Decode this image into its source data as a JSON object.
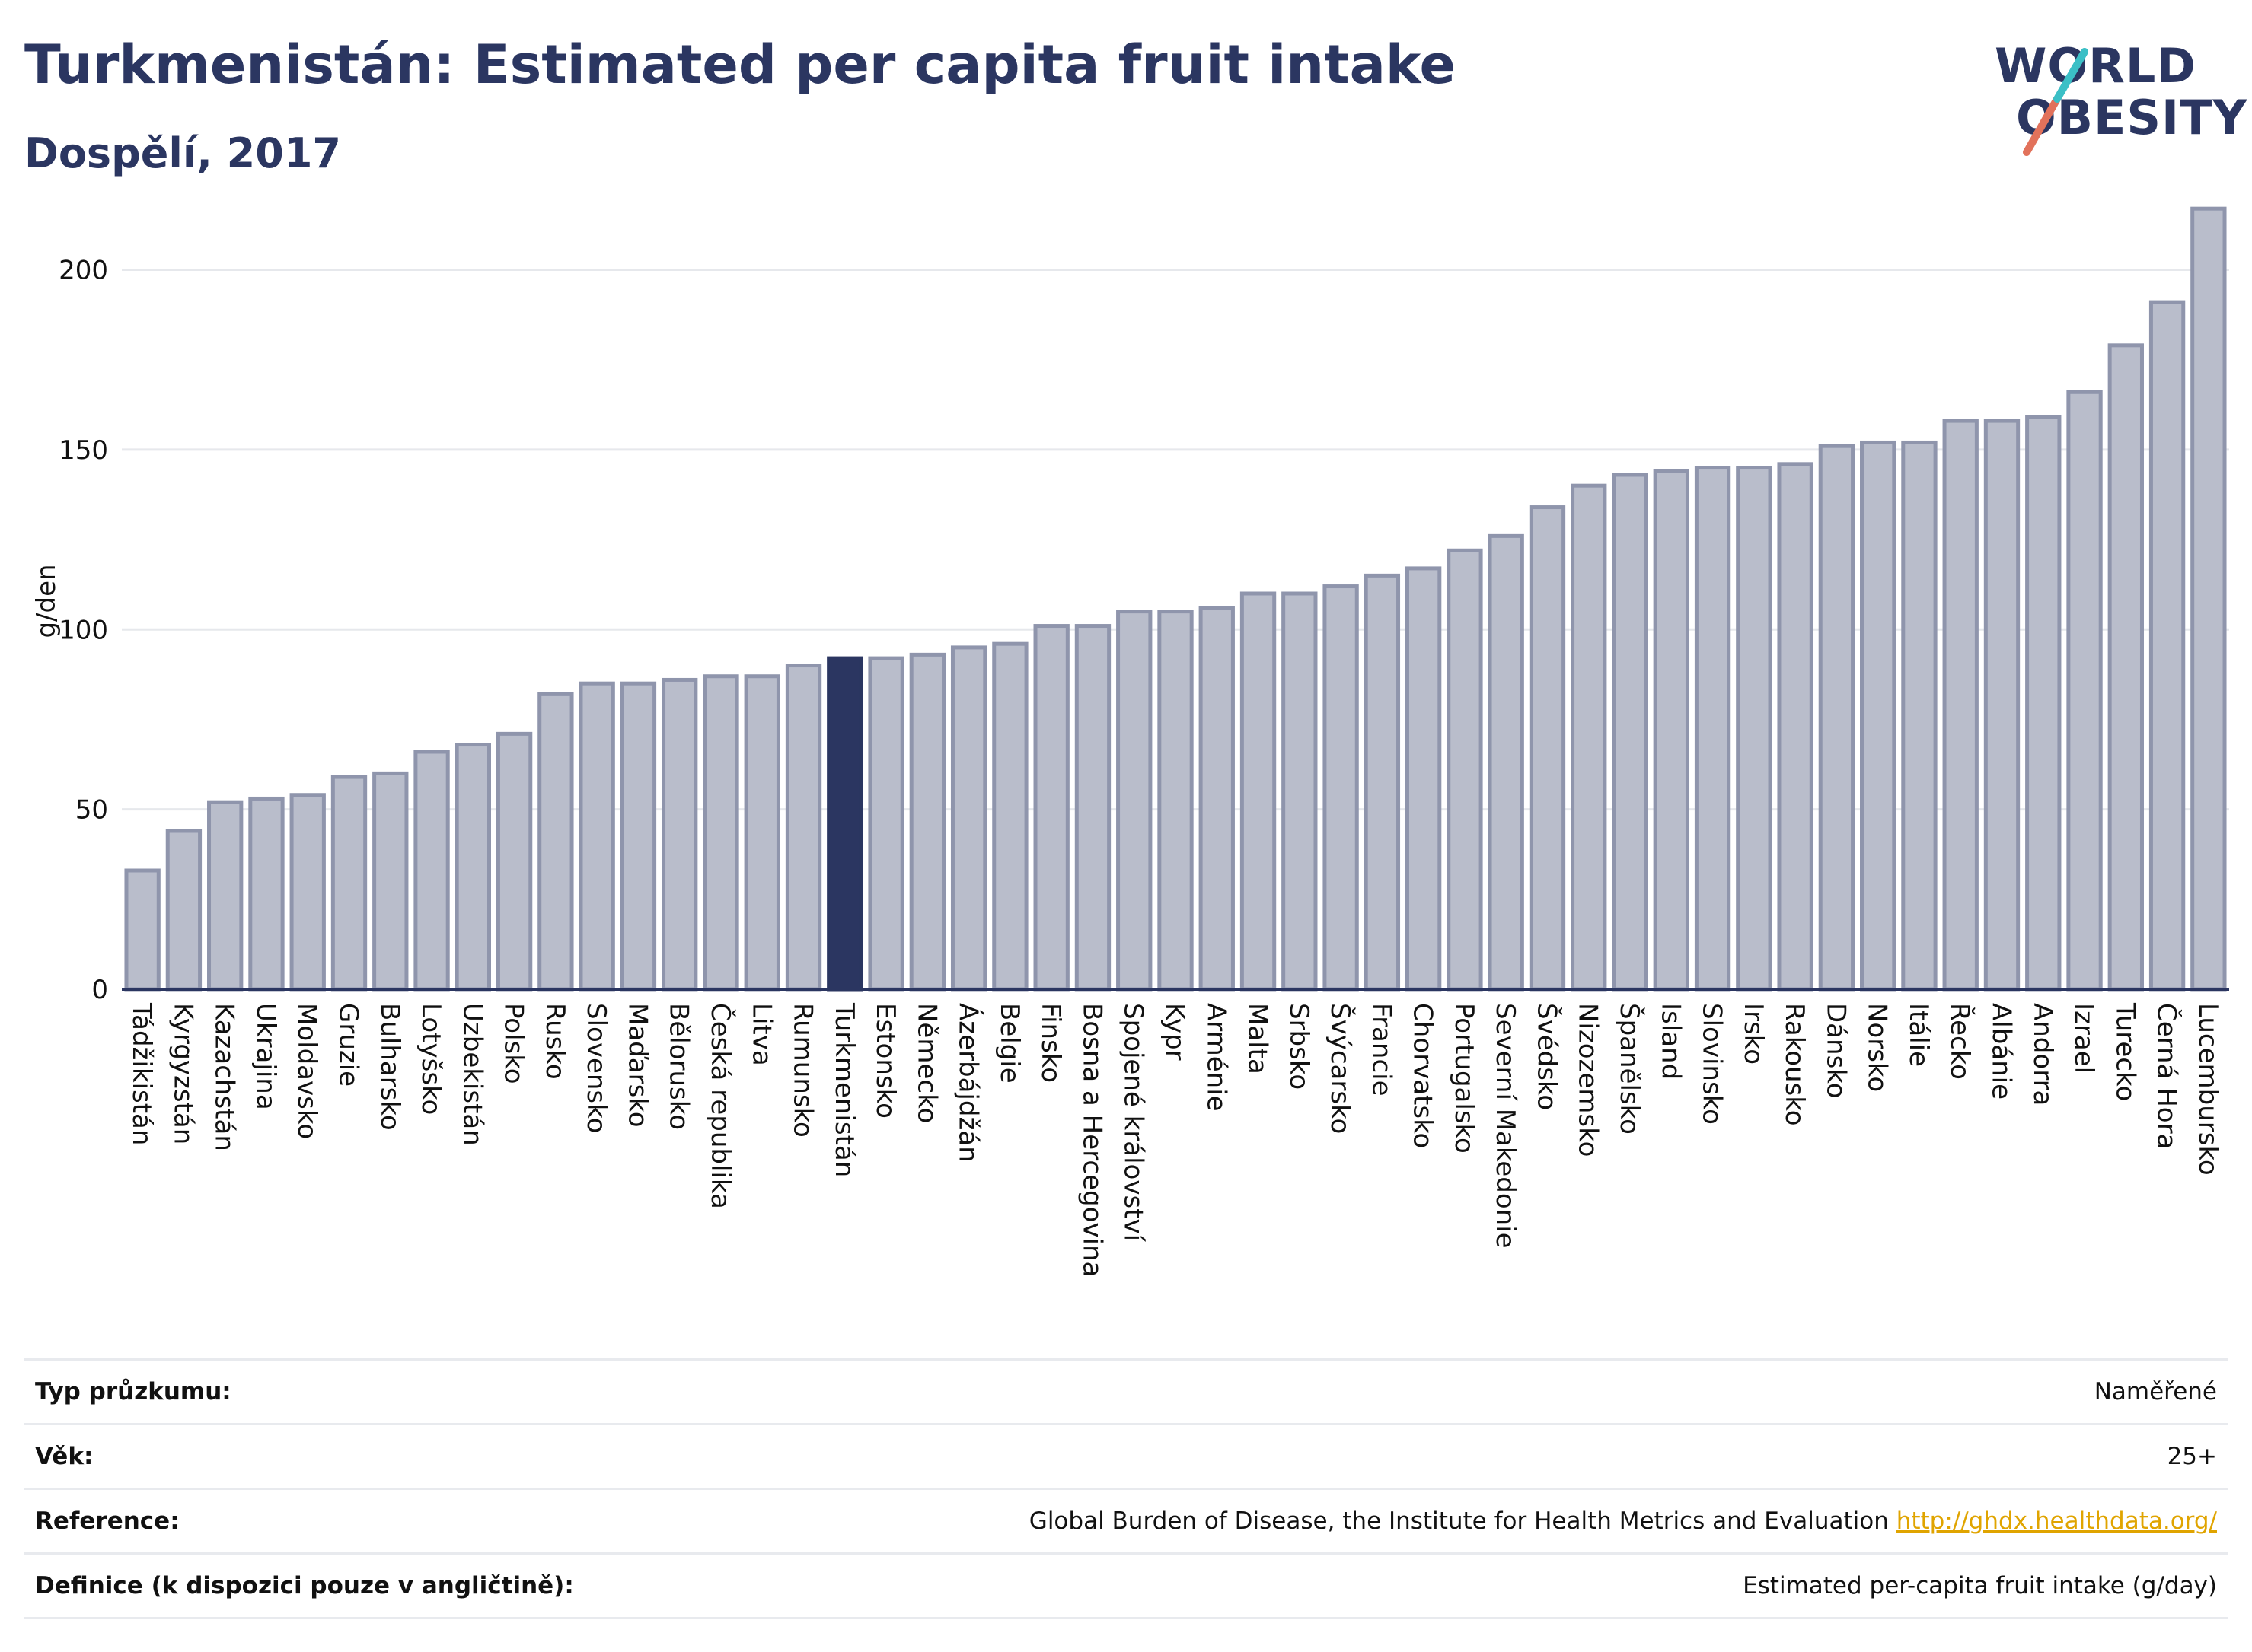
{
  "header": {
    "title": "Turkmenistán: Estimated per capita fruit intake",
    "subtitle": "Dospělí, 2017"
  },
  "logo": {
    "line1": "WORLD",
    "line2": "OBESITY",
    "colors": {
      "teal": "#3bbfc6",
      "coral": "#e2725b"
    }
  },
  "chart_data": {
    "type": "bar",
    "ylabel": "g/den",
    "ylim": [
      0,
      220
    ],
    "yticks": [
      0,
      50,
      100,
      150,
      200
    ],
    "grid": true,
    "highlight": "Turkmenistán",
    "colors": {
      "bar": "#b9bdcb",
      "bar_stroke": "#8f95ac",
      "highlight": "#2b3661"
    },
    "categories": [
      "Tádžikistán",
      "Kyrgyzstán",
      "Kazachstán",
      "Ukrajina",
      "Moldavsko",
      "Gruzie",
      "Bulharsko",
      "Lotyšsko",
      "Uzbekistán",
      "Polsko",
      "Rusko",
      "Slovensko",
      "Maďarsko",
      "Bělorusko",
      "Česká republika",
      "Litva",
      "Rumunsko",
      "Turkmenistán",
      "Estonsko",
      "Německo",
      "Ázerbájdžán",
      "Belgie",
      "Finsko",
      "Bosna a Hercegovina",
      "Spojené království",
      "Kypr",
      "Arménie",
      "Malta",
      "Srbsko",
      "Švýcarsko",
      "Francie",
      "Chorvatsko",
      "Portugalsko",
      "Severní Makedonie",
      "Švédsko",
      "Nizozemsko",
      "Španělsko",
      "Island",
      "Slovinsko",
      "Irsko",
      "Rakousko",
      "Dánsko",
      "Norsko",
      "Itálie",
      "Řecko",
      "Albánie",
      "Andorra",
      "Izrael",
      "Turecko",
      "Černá Hora",
      "Lucembursko"
    ],
    "values": [
      33,
      44,
      52,
      53,
      54,
      59,
      60,
      66,
      68,
      71,
      82,
      85,
      85,
      86,
      87,
      87,
      90,
      92,
      92,
      93,
      95,
      96,
      101,
      101,
      105,
      105,
      106,
      110,
      110,
      112,
      115,
      117,
      122,
      126,
      134,
      140,
      143,
      144,
      145,
      145,
      146,
      151,
      152,
      152,
      158,
      158,
      159,
      166,
      179,
      191,
      217
    ]
  },
  "meta": {
    "rows": [
      {
        "label": "Typ průzkumu:",
        "value": "Naměřené"
      },
      {
        "label": "Věk:",
        "value": "25+"
      },
      {
        "label": "Reference:",
        "value": "Global Burden of Disease, the Institute for Health Metrics and Evaluation",
        "link": "http://ghdx.healthdata.org/"
      },
      {
        "label": "Definice (k dispozici pouze v angličtině):",
        "value": "Estimated per-capita fruit intake (g/day)"
      }
    ]
  }
}
